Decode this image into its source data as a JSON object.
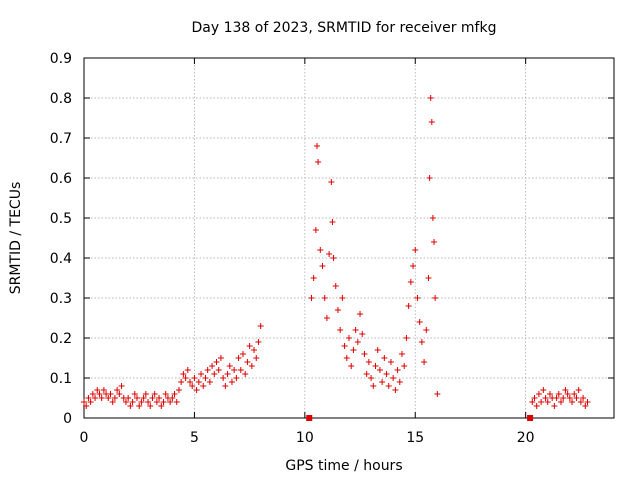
{
  "chart_data": {
    "type": "scatter",
    "title": "Day 138 of 2023, SRMTID for receiver mfkg",
    "xlabel": "GPS time / hours",
    "ylabel": "SRMTID / TECUs",
    "xlim": [
      0,
      24
    ],
    "ylim": [
      0,
      0.9
    ],
    "xticks": [
      0,
      5,
      10,
      15,
      20
    ],
    "yticks": [
      0,
      0.1,
      0.2,
      0.3,
      0.4,
      0.5,
      0.6,
      0.7,
      0.8,
      0.9
    ],
    "xtick_labels": [
      "0",
      "5",
      "10",
      "15",
      "20"
    ],
    "ytick_labels": [
      "0",
      "0.1",
      "0.2",
      "0.3",
      "0.4",
      "0.5",
      "0.6",
      "0.7",
      "0.8",
      "0.9"
    ],
    "grid": true,
    "marker": "+",
    "color": "#dd0000",
    "series": [
      {
        "name": "SRMTID",
        "points": [
          [
            0.0,
            0.04
          ],
          [
            0.1,
            0.03
          ],
          [
            0.2,
            0.05
          ],
          [
            0.3,
            0.04
          ],
          [
            0.4,
            0.06
          ],
          [
            0.5,
            0.05
          ],
          [
            0.6,
            0.07
          ],
          [
            0.7,
            0.06
          ],
          [
            0.8,
            0.05
          ],
          [
            0.9,
            0.07
          ],
          [
            1.0,
            0.06
          ],
          [
            1.1,
            0.05
          ],
          [
            1.2,
            0.06
          ],
          [
            1.3,
            0.04
          ],
          [
            1.4,
            0.05
          ],
          [
            1.5,
            0.07
          ],
          [
            1.6,
            0.06
          ],
          [
            1.7,
            0.08
          ],
          [
            1.8,
            0.05
          ],
          [
            1.9,
            0.04
          ],
          [
            2.0,
            0.05
          ],
          [
            2.1,
            0.03
          ],
          [
            2.2,
            0.04
          ],
          [
            2.3,
            0.06
          ],
          [
            2.4,
            0.05
          ],
          [
            2.5,
            0.03
          ],
          [
            2.6,
            0.04
          ],
          [
            2.7,
            0.05
          ],
          [
            2.8,
            0.06
          ],
          [
            2.9,
            0.04
          ],
          [
            3.0,
            0.03
          ],
          [
            3.1,
            0.05
          ],
          [
            3.2,
            0.06
          ],
          [
            3.3,
            0.04
          ],
          [
            3.4,
            0.05
          ],
          [
            3.5,
            0.03
          ],
          [
            3.6,
            0.04
          ],
          [
            3.7,
            0.06
          ],
          [
            3.8,
            0.05
          ],
          [
            3.9,
            0.04
          ],
          [
            4.0,
            0.05
          ],
          [
            4.1,
            0.06
          ],
          [
            4.2,
            0.04
          ],
          [
            4.3,
            0.07
          ],
          [
            4.4,
            0.09
          ],
          [
            4.5,
            0.11
          ],
          [
            4.6,
            0.1
          ],
          [
            4.7,
            0.12
          ],
          [
            4.8,
            0.09
          ],
          [
            4.9,
            0.08
          ],
          [
            5.0,
            0.1
          ],
          [
            5.1,
            0.07
          ],
          [
            5.2,
            0.09
          ],
          [
            5.3,
            0.11
          ],
          [
            5.4,
            0.08
          ],
          [
            5.5,
            0.1
          ],
          [
            5.6,
            0.12
          ],
          [
            5.7,
            0.09
          ],
          [
            5.8,
            0.13
          ],
          [
            5.9,
            0.11
          ],
          [
            6.0,
            0.14
          ],
          [
            6.1,
            0.12
          ],
          [
            6.2,
            0.15
          ],
          [
            6.3,
            0.1
          ],
          [
            6.4,
            0.08
          ],
          [
            6.5,
            0.11
          ],
          [
            6.6,
            0.13
          ],
          [
            6.7,
            0.09
          ],
          [
            6.8,
            0.12
          ],
          [
            6.9,
            0.1
          ],
          [
            7.0,
            0.15
          ],
          [
            7.1,
            0.12
          ],
          [
            7.2,
            0.16
          ],
          [
            7.3,
            0.11
          ],
          [
            7.4,
            0.14
          ],
          [
            7.5,
            0.18
          ],
          [
            7.6,
            0.13
          ],
          [
            7.7,
            0.17
          ],
          [
            7.8,
            0.15
          ],
          [
            7.9,
            0.19
          ],
          [
            8.0,
            0.23
          ],
          [
            10.3,
            0.3
          ],
          [
            10.4,
            0.35
          ],
          [
            10.5,
            0.47
          ],
          [
            10.55,
            0.68
          ],
          [
            10.6,
            0.64
          ],
          [
            10.7,
            0.42
          ],
          [
            10.8,
            0.38
          ],
          [
            10.9,
            0.3
          ],
          [
            11.0,
            0.25
          ],
          [
            11.1,
            0.41
          ],
          [
            11.2,
            0.59
          ],
          [
            11.25,
            0.49
          ],
          [
            11.3,
            0.4
          ],
          [
            11.4,
            0.33
          ],
          [
            11.5,
            0.27
          ],
          [
            11.6,
            0.22
          ],
          [
            11.7,
            0.3
          ],
          [
            11.8,
            0.18
          ],
          [
            11.9,
            0.15
          ],
          [
            12.0,
            0.2
          ],
          [
            12.1,
            0.13
          ],
          [
            12.2,
            0.17
          ],
          [
            12.3,
            0.22
          ],
          [
            12.4,
            0.19
          ],
          [
            12.5,
            0.26
          ],
          [
            12.6,
            0.21
          ],
          [
            12.7,
            0.16
          ],
          [
            12.8,
            0.11
          ],
          [
            12.9,
            0.14
          ],
          [
            13.0,
            0.1
          ],
          [
            13.1,
            0.08
          ],
          [
            13.2,
            0.13
          ],
          [
            13.3,
            0.17
          ],
          [
            13.4,
            0.12
          ],
          [
            13.5,
            0.09
          ],
          [
            13.6,
            0.15
          ],
          [
            13.7,
            0.11
          ],
          [
            13.8,
            0.08
          ],
          [
            13.9,
            0.14
          ],
          [
            14.0,
            0.1
          ],
          [
            14.1,
            0.07
          ],
          [
            14.2,
            0.12
          ],
          [
            14.3,
            0.09
          ],
          [
            14.4,
            0.16
          ],
          [
            14.5,
            0.13
          ],
          [
            14.6,
            0.2
          ],
          [
            14.7,
            0.28
          ],
          [
            14.8,
            0.34
          ],
          [
            14.9,
            0.38
          ],
          [
            15.0,
            0.42
          ],
          [
            15.1,
            0.3
          ],
          [
            15.2,
            0.24
          ],
          [
            15.3,
            0.19
          ],
          [
            15.4,
            0.14
          ],
          [
            15.5,
            0.22
          ],
          [
            15.6,
            0.35
          ],
          [
            15.65,
            0.6
          ],
          [
            15.7,
            0.8
          ],
          [
            15.75,
            0.74
          ],
          [
            15.8,
            0.5
          ],
          [
            15.85,
            0.44
          ],
          [
            15.9,
            0.3
          ],
          [
            16.0,
            0.06
          ],
          [
            20.3,
            0.04
          ],
          [
            20.4,
            0.05
          ],
          [
            20.5,
            0.03
          ],
          [
            20.6,
            0.06
          ],
          [
            20.7,
            0.04
          ],
          [
            20.8,
            0.07
          ],
          [
            20.9,
            0.05
          ],
          [
            21.0,
            0.04
          ],
          [
            21.1,
            0.06
          ],
          [
            21.2,
            0.05
          ],
          [
            21.3,
            0.03
          ],
          [
            21.4,
            0.05
          ],
          [
            21.5,
            0.06
          ],
          [
            21.6,
            0.04
          ],
          [
            21.7,
            0.05
          ],
          [
            21.8,
            0.07
          ],
          [
            21.9,
            0.06
          ],
          [
            22.0,
            0.05
          ],
          [
            22.1,
            0.04
          ],
          [
            22.2,
            0.06
          ],
          [
            22.3,
            0.05
          ],
          [
            22.4,
            0.07
          ],
          [
            22.5,
            0.04
          ],
          [
            22.6,
            0.05
          ],
          [
            22.7,
            0.03
          ],
          [
            22.8,
            0.04
          ]
        ]
      }
    ],
    "gap_markers": [
      10.2,
      20.2
    ]
  }
}
